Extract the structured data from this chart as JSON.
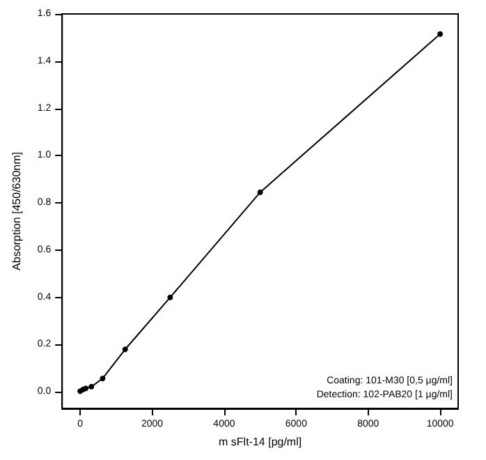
{
  "chart_data": {
    "type": "line",
    "xlabel": "m sFlt-14 [pg/ml]",
    "ylabel": "Absorption [450/630nm]",
    "x": [
      0,
      78,
      156,
      312,
      625,
      1250,
      2500,
      5000,
      10000
    ],
    "values": [
      0.003,
      0.01,
      0.015,
      0.022,
      0.057,
      0.18,
      0.4,
      0.845,
      1.515
    ],
    "color": "#000000",
    "marker": "circle",
    "line_style": "solid",
    "xlim": [
      -500,
      10500
    ],
    "xticks": [
      0,
      2000,
      4000,
      6000,
      8000,
      10000
    ],
    "ylim": [
      -0.07,
      1.6
    ],
    "yticks": [
      {
        "value": 0,
        "label": "0.0"
      },
      {
        "value": 0.2,
        "label": "0.2"
      },
      {
        "value": 0.4,
        "label": "0.4"
      },
      {
        "value": 0.6,
        "label": "0.6"
      },
      {
        "value": 0.8,
        "label": "0.8"
      },
      {
        "value": 1,
        "label": "1.0"
      },
      {
        "value": 1.2,
        "label": "1.2"
      },
      {
        "value": 1.4,
        "label": "1.4"
      },
      {
        "value": 1.6,
        "label": "1.6"
      }
    ],
    "annotations": [
      "Coating: 101-M30 [0,5 µg/ml]",
      "Detection: 102-PAB20 [1 µg/ml]"
    ],
    "grid": false
  }
}
